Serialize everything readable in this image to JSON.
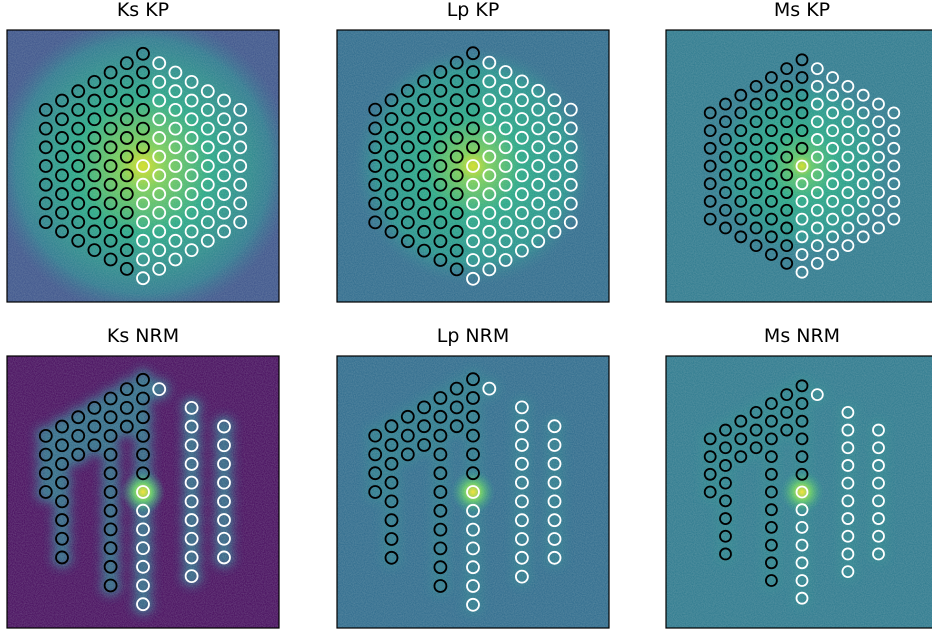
{
  "panels": [
    {
      "title": "Ks KP"
    },
    {
      "title": "Lp KP"
    },
    {
      "title": "Ms KP"
    },
    {
      "title": "Ks NRM"
    },
    {
      "title": "Lp NRM"
    },
    {
      "title": "Ms NRM"
    }
  ]
}
